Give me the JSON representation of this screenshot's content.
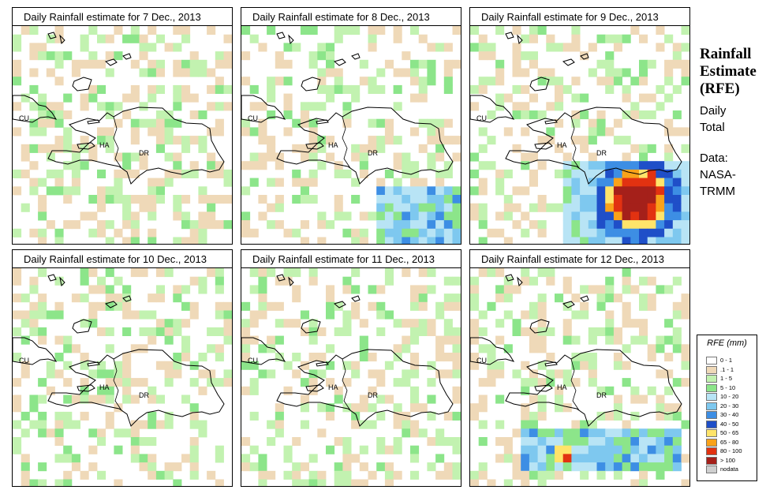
{
  "panels": [
    {
      "title": "Daily Rainfall estimate for  7 Dec., 2013",
      "seed": 7,
      "storm": "none"
    },
    {
      "title": "Daily Rainfall estimate for  8 Dec., 2013",
      "seed": 8,
      "storm": "light"
    },
    {
      "title": "Daily Rainfall estimate for  9 Dec., 2013",
      "seed": 9,
      "storm": "heavy"
    },
    {
      "title": "Daily Rainfall estimate for  10 Dec., 2013",
      "seed": 10,
      "storm": "none"
    },
    {
      "title": "Daily Rainfall estimate for  11 Dec., 2013",
      "seed": 11,
      "storm": "none"
    },
    {
      "title": "Daily Rainfall estimate for  12 Dec., 2013",
      "seed": 12,
      "storm": "medium"
    }
  ],
  "map_labels": {
    "cuba": "CU",
    "haiti": "HA",
    "dominican_republic": "DR"
  },
  "side": {
    "title_lines": [
      "Rainfall",
      "Estimate",
      "(RFE)"
    ],
    "period_lines": [
      "Daily",
      "Total"
    ],
    "source_lines": [
      "Data:",
      "NASA-",
      "TRMM"
    ]
  },
  "legend": {
    "title": "RFE (mm)",
    "entries": [
      {
        "label": "0 - 1",
        "color": "#ffffff"
      },
      {
        "label": ".1 - 1",
        "color": "#efd9b8"
      },
      {
        "label": "1 - 5",
        "color": "#c2f2b0"
      },
      {
        "label": "5 - 10",
        "color": "#8ce58a"
      },
      {
        "label": "10 - 20",
        "color": "#b8e4f5"
      },
      {
        "label": "20 - 30",
        "color": "#7ec8ef"
      },
      {
        "label": "30 - 40",
        "color": "#3d8ee4"
      },
      {
        "label": "40 - 50",
        "color": "#1f4fc8"
      },
      {
        "label": "50 - 65",
        "color": "#ffe46a"
      },
      {
        "label": "65 - 80",
        "color": "#f9a21a"
      },
      {
        "label": "80 - 100",
        "color": "#e23211"
      },
      {
        "label": "> 100",
        "color": "#a5201a"
      },
      {
        "label": "nodata",
        "color": "#cfcfcf"
      }
    ]
  }
}
